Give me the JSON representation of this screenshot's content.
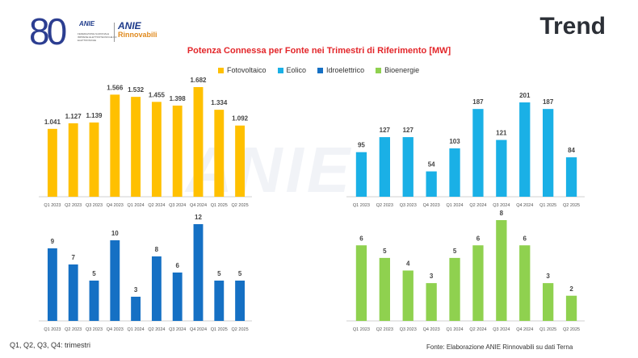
{
  "header": {
    "logo_number": "80",
    "anie_logo_text": "ANIE",
    "anie_logo_subtitle": "FEDERAZIONE NAZIONALE IMPRESE ELETTROTECNICHE ED ELETTRONICHE",
    "brand_name_1": "ANIE",
    "brand_name_2": "Rinnovabili",
    "page_title": "Trend"
  },
  "chart_title": "Potenza Connessa per Fonte nei Trimestri di Riferimento [MW]",
  "legend": [
    {
      "label": "Fotovoltaico",
      "color": "#ffc000"
    },
    {
      "label": "Eolico",
      "color": "#1ab0e6"
    },
    {
      "label": "Idroelettrico",
      "color": "#1570c4"
    },
    {
      "label": "Bioenergie",
      "color": "#8fd14f"
    }
  ],
  "watermark": "ANIE",
  "footnotes": {
    "left": "Q1, Q2, Q3, Q4: trimestri",
    "right": "Fonte: Elaborazione ANIE Rinnovabili su dati Terna"
  },
  "chart_data": [
    {
      "type": "bar",
      "series_name": "Fotovoltaico",
      "color": "#ffc000",
      "categories": [
        "Q1 2023",
        "Q2 2023",
        "Q3 2023",
        "Q4 2023",
        "Q1 2024",
        "Q2 2024",
        "Q3 2024",
        "Q4 2024",
        "Q1 2025",
        "Q2 2025"
      ],
      "values": [
        1041,
        1127,
        1139,
        1566,
        1532,
        1455,
        1398,
        1682,
        1334,
        1092
      ],
      "labels": [
        "1.041",
        "1.127",
        "1.139",
        "1.566",
        "1.532",
        "1.455",
        "1.398",
        "1.682",
        "1.334",
        "1.092"
      ]
    },
    {
      "type": "bar",
      "series_name": "Eolico",
      "color": "#1ab0e6",
      "categories": [
        "Q1 2023",
        "Q2 2023",
        "Q3 2023",
        "Q4 2023",
        "Q1 2024",
        "Q2 2024",
        "Q3 2024",
        "Q4 2024",
        "Q1 2025",
        "Q2 2025"
      ],
      "values": [
        95,
        127,
        127,
        54,
        103,
        187,
        121,
        201,
        187,
        84
      ],
      "labels": [
        "95",
        "127",
        "127",
        "54",
        "103",
        "187",
        "121",
        "201",
        "187",
        "84"
      ]
    },
    {
      "type": "bar",
      "series_name": "Idroelettrico",
      "color": "#1570c4",
      "categories": [
        "Q1 2023",
        "Q2 2023",
        "Q3 2023",
        "Q4 2023",
        "Q1 2024",
        "Q2 2024",
        "Q3 2024",
        "Q4 2024",
        "Q1 2025",
        "Q2 2025"
      ],
      "values": [
        9,
        7,
        5,
        10,
        3,
        8,
        6,
        12,
        5,
        5
      ],
      "labels": [
        "9",
        "7",
        "5",
        "10",
        "3",
        "8",
        "6",
        "12",
        "5",
        "5"
      ]
    },
    {
      "type": "bar",
      "series_name": "Bioenergie",
      "color": "#8fd14f",
      "categories": [
        "Q1 2023",
        "Q2 2023",
        "Q3 2023",
        "Q4 2023",
        "Q1 2024",
        "Q2 2024",
        "Q3 2024",
        "Q4 2024",
        "Q1 2025",
        "Q2 2025"
      ],
      "values": [
        6,
        5,
        4,
        3,
        5,
        6,
        8,
        6,
        3,
        2
      ],
      "labels": [
        "6",
        "5",
        "4",
        "3",
        "5",
        "6",
        "8",
        "6",
        "3",
        "2"
      ]
    }
  ]
}
